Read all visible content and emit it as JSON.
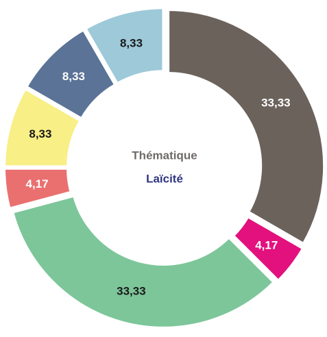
{
  "chart_data": {
    "type": "donut",
    "values": [
      33.33,
      4.17,
      33.33,
      4.17,
      8.33,
      8.33,
      8.33
    ],
    "value_labels": [
      "33,33",
      "4,17",
      "33,33",
      "4,17",
      "8,33",
      "8,33",
      "8,33"
    ],
    "colors": [
      "#6b625c",
      "#e2117d",
      "#7dc69a",
      "#e9706f",
      "#f8ef86",
      "#5a7397",
      "#9dc9d9"
    ],
    "annotations": [
      "Thématique",
      "Laïcité"
    ]
  }
}
